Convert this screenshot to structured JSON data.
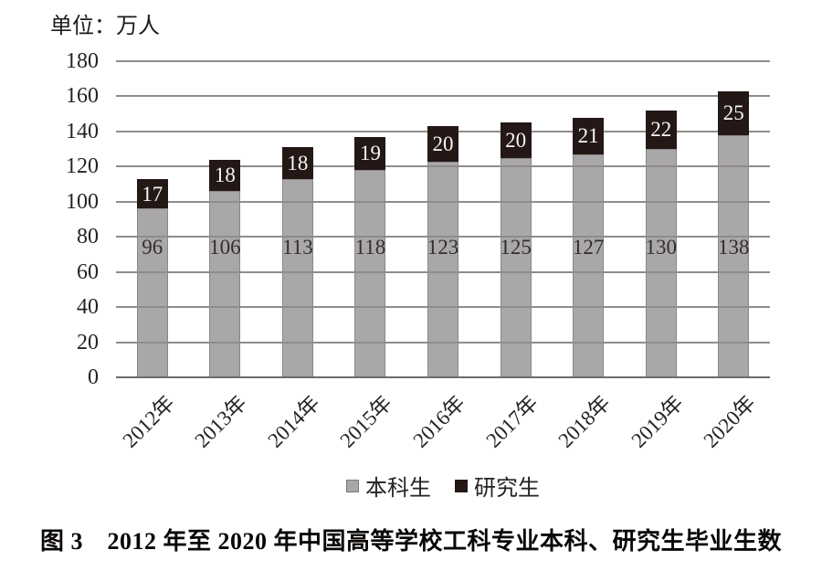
{
  "unit_label": "单位：万人",
  "caption": "图 3　2012 年至 2020 年中国高等学校工科专业本科、研究生毕业生数",
  "legend": {
    "items": [
      {
        "label": "本科生",
        "color": "#a9a7a7"
      },
      {
        "label": "研究生",
        "color": "#231815"
      }
    ]
  },
  "colors": {
    "undergrad_bar": "#a9a7a7",
    "grad_bar": "#231815",
    "gridline": "#8f8c8c",
    "axis": "#6e6b6b",
    "grad_value_text": "#f7f5f1",
    "undergrad_value_text": "#332e2c"
  },
  "chart_data": {
    "type": "bar",
    "stacked": true,
    "title": "图 3　2012 年至 2020 年中国高等学校工科专业本科、研究生毕业生数",
    "unit": "万人",
    "categories": [
      "2012年",
      "2013年",
      "2014年",
      "2015年",
      "2016年",
      "2017年",
      "2018年",
      "2019年",
      "2020年"
    ],
    "series": [
      {
        "name": "本科生",
        "color": "#a9a7a7",
        "values": [
          96,
          106,
          113,
          118,
          123,
          125,
          127,
          130,
          138
        ]
      },
      {
        "name": "研究生",
        "color": "#231815",
        "values": [
          17,
          18,
          18,
          19,
          20,
          20,
          21,
          22,
          25
        ]
      }
    ],
    "ylim": [
      0,
      180
    ],
    "yticks": [
      0,
      20,
      40,
      60,
      80,
      100,
      120,
      140,
      160,
      180
    ],
    "grid": true,
    "gridlines_drawn_over_undergrad_bars": true,
    "legend_position": "bottom",
    "value_labels": "shown on bars"
  }
}
